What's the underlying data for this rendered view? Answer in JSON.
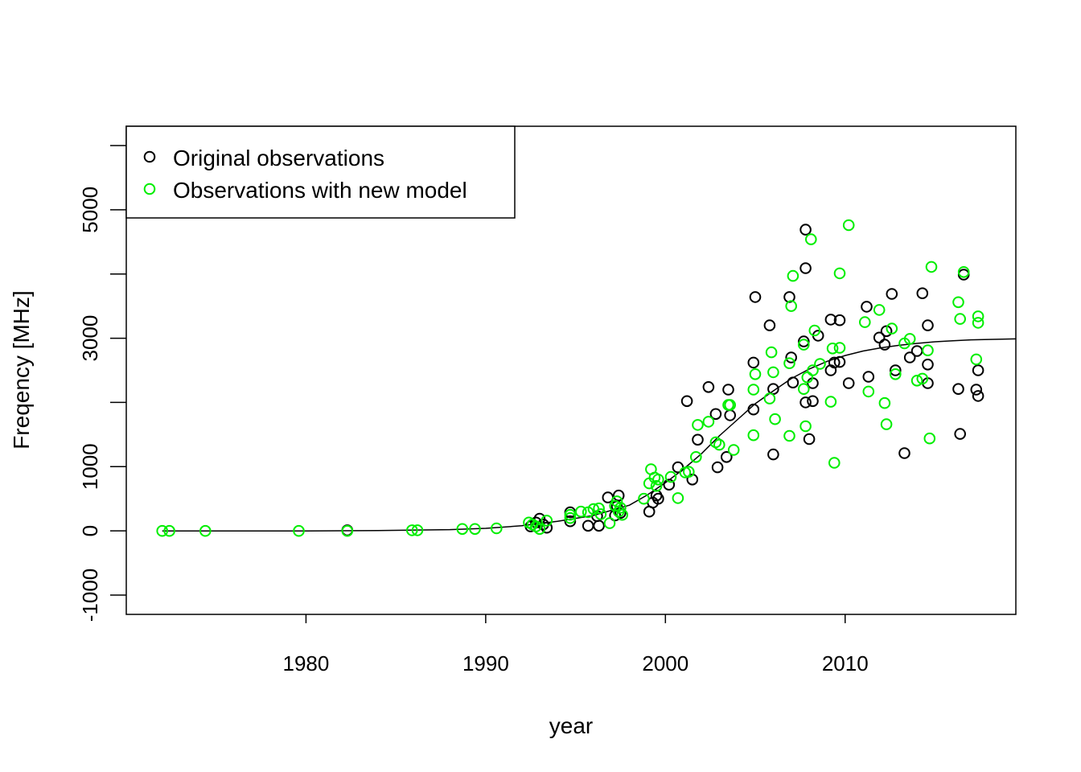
{
  "chart_data": {
    "type": "scatter",
    "xlabel": "year",
    "ylabel": "Freqency [MHz]",
    "xlim": [
      1970,
      2019.5
    ],
    "ylim": [
      -1300,
      6300
    ],
    "x_ticks": [
      1980,
      1990,
      2000,
      2010
    ],
    "y_ticks": [
      -1000,
      0,
      1000,
      3000,
      5000
    ],
    "y_minor_ticks": [
      2000,
      4000,
      6000
    ],
    "grid": false,
    "legend_position": "top-left",
    "colors": {
      "original": "#000000",
      "new_model": "#00ee00",
      "curve": "#000000"
    },
    "series": [
      {
        "name": "Original observations",
        "marker": "open-circle",
        "points": [
          [
            1982.3,
            10
          ],
          [
            1992.5,
            70
          ],
          [
            1992.8,
            130
          ],
          [
            1993.0,
            190
          ],
          [
            1993.2,
            100
          ],
          [
            1993.4,
            50
          ],
          [
            1994.7,
            290
          ],
          [
            1994.7,
            150
          ],
          [
            1995.7,
            80
          ],
          [
            1996.2,
            230
          ],
          [
            1996.3,
            80
          ],
          [
            1996.8,
            520
          ],
          [
            1997.2,
            240
          ],
          [
            1997.3,
            380
          ],
          [
            1997.4,
            550
          ],
          [
            1997.5,
            280
          ],
          [
            1999.1,
            300
          ],
          [
            1999.3,
            440
          ],
          [
            1999.5,
            550
          ],
          [
            1999.6,
            500
          ],
          [
            2000.2,
            720
          ],
          [
            2000.7,
            990
          ],
          [
            2001.2,
            2020
          ],
          [
            2001.5,
            800
          ],
          [
            2001.8,
            1420
          ],
          [
            2002.4,
            2240
          ],
          [
            2002.8,
            1820
          ],
          [
            2002.9,
            990
          ],
          [
            2003.4,
            1150
          ],
          [
            2003.5,
            2200
          ],
          [
            2003.6,
            1800
          ],
          [
            2004.9,
            2620
          ],
          [
            2004.9,
            1890
          ],
          [
            2005.0,
            3640
          ],
          [
            2005.8,
            3200
          ],
          [
            2006.0,
            1190
          ],
          [
            2006.0,
            2210
          ],
          [
            2006.9,
            3640
          ],
          [
            2007.0,
            2700
          ],
          [
            2007.1,
            2310
          ],
          [
            2007.7,
            2950
          ],
          [
            2007.8,
            4090
          ],
          [
            2007.8,
            4690
          ],
          [
            2007.8,
            2000
          ],
          [
            2008.0,
            1430
          ],
          [
            2008.2,
            2020
          ],
          [
            2008.2,
            2300
          ],
          [
            2008.5,
            3040
          ],
          [
            2009.2,
            3290
          ],
          [
            2009.2,
            2500
          ],
          [
            2009.4,
            2620
          ],
          [
            2009.7,
            3280
          ],
          [
            2009.7,
            2630
          ],
          [
            2010.2,
            2300
          ],
          [
            2011.2,
            3490
          ],
          [
            2011.3,
            2400
          ],
          [
            2011.9,
            3010
          ],
          [
            2012.2,
            2900
          ],
          [
            2012.3,
            3110
          ],
          [
            2012.6,
            3690
          ],
          [
            2012.8,
            2500
          ],
          [
            2013.3,
            1210
          ],
          [
            2013.6,
            2700
          ],
          [
            2014.0,
            2800
          ],
          [
            2014.3,
            3700
          ],
          [
            2014.6,
            3200
          ],
          [
            2014.6,
            2590
          ],
          [
            2014.6,
            2300
          ],
          [
            2016.3,
            2210
          ],
          [
            2016.4,
            1510
          ],
          [
            2016.6,
            3990
          ],
          [
            2017.3,
            2200
          ],
          [
            2017.4,
            2100
          ],
          [
            2017.4,
            2500
          ]
        ]
      },
      {
        "name": "Observations with new model",
        "marker": "open-circle",
        "points": [
          [
            1972.0,
            0
          ],
          [
            1972.4,
            0
          ],
          [
            1974.4,
            0
          ],
          [
            1979.6,
            0
          ],
          [
            1982.3,
            0
          ],
          [
            1985.9,
            10
          ],
          [
            1986.2,
            10
          ],
          [
            1988.7,
            30
          ],
          [
            1989.4,
            30
          ],
          [
            1990.6,
            40
          ],
          [
            1992.4,
            130
          ],
          [
            1992.6,
            100
          ],
          [
            1992.8,
            70
          ],
          [
            1993.0,
            30
          ],
          [
            1993.4,
            160
          ],
          [
            1994.7,
            200
          ],
          [
            1994.7,
            250
          ],
          [
            1995.3,
            300
          ],
          [
            1995.7,
            290
          ],
          [
            1996.0,
            340
          ],
          [
            1996.3,
            350
          ],
          [
            1996.4,
            260
          ],
          [
            1996.9,
            120
          ],
          [
            1997.2,
            390
          ],
          [
            1997.3,
            460
          ],
          [
            1997.4,
            300
          ],
          [
            1997.5,
            360
          ],
          [
            1997.6,
            250
          ],
          [
            1998.8,
            500
          ],
          [
            1999.1,
            740
          ],
          [
            1999.2,
            960
          ],
          [
            1999.4,
            830
          ],
          [
            1999.5,
            700
          ],
          [
            1999.6,
            800
          ],
          [
            2000.3,
            840
          ],
          [
            2000.7,
            510
          ],
          [
            2001.1,
            910
          ],
          [
            2001.3,
            920
          ],
          [
            2001.7,
            1150
          ],
          [
            2001.8,
            1650
          ],
          [
            2002.4,
            1700
          ],
          [
            2002.8,
            1380
          ],
          [
            2003.0,
            1340
          ],
          [
            2003.5,
            1960
          ],
          [
            2003.6,
            1960
          ],
          [
            2003.8,
            1260
          ],
          [
            2004.9,
            1490
          ],
          [
            2004.9,
            2200
          ],
          [
            2005.0,
            2440
          ],
          [
            2005.8,
            2060
          ],
          [
            2005.9,
            2780
          ],
          [
            2006.0,
            2470
          ],
          [
            2006.1,
            1740
          ],
          [
            2006.9,
            1480
          ],
          [
            2006.9,
            2610
          ],
          [
            2007.0,
            3500
          ],
          [
            2007.1,
            3970
          ],
          [
            2007.7,
            2900
          ],
          [
            2007.7,
            2210
          ],
          [
            2007.8,
            1630
          ],
          [
            2007.9,
            2390
          ],
          [
            2008.1,
            4540
          ],
          [
            2008.2,
            2500
          ],
          [
            2008.3,
            3120
          ],
          [
            2008.6,
            2600
          ],
          [
            2009.2,
            2010
          ],
          [
            2009.3,
            2840
          ],
          [
            2009.4,
            1060
          ],
          [
            2009.7,
            4010
          ],
          [
            2009.7,
            2850
          ],
          [
            2010.2,
            4760
          ],
          [
            2011.1,
            3250
          ],
          [
            2011.3,
            2170
          ],
          [
            2011.9,
            3440
          ],
          [
            2012.2,
            1990
          ],
          [
            2012.3,
            1660
          ],
          [
            2012.6,
            3150
          ],
          [
            2012.8,
            2440
          ],
          [
            2013.3,
            2920
          ],
          [
            2013.6,
            2990
          ],
          [
            2014.0,
            2340
          ],
          [
            2014.3,
            2370
          ],
          [
            2014.6,
            2810
          ],
          [
            2014.7,
            1440
          ],
          [
            2014.8,
            4110
          ],
          [
            2016.3,
            3560
          ],
          [
            2016.4,
            3300
          ],
          [
            2016.6,
            4030
          ],
          [
            2017.3,
            2670
          ],
          [
            2017.4,
            3340
          ],
          [
            2017.4,
            3240
          ]
        ]
      }
    ],
    "fit_curve": {
      "label": "",
      "x": [
        1972,
        1975,
        1980,
        1984,
        1988,
        1990,
        1992,
        1994,
        1996,
        1998,
        1999,
        2000,
        2001,
        2002,
        2003,
        2004,
        2005,
        2006,
        2007,
        2008,
        2009,
        2010,
        2011,
        2012,
        2013,
        2014,
        2015,
        2016,
        2017,
        2019.5
      ],
      "y": [
        0,
        0,
        0,
        5,
        20,
        40,
        80,
        150,
        240,
        400,
        560,
        750,
        960,
        1200,
        1480,
        1730,
        1980,
        2180,
        2370,
        2520,
        2640,
        2730,
        2800,
        2850,
        2890,
        2920,
        2945,
        2960,
        2975,
        2990
      ]
    }
  }
}
